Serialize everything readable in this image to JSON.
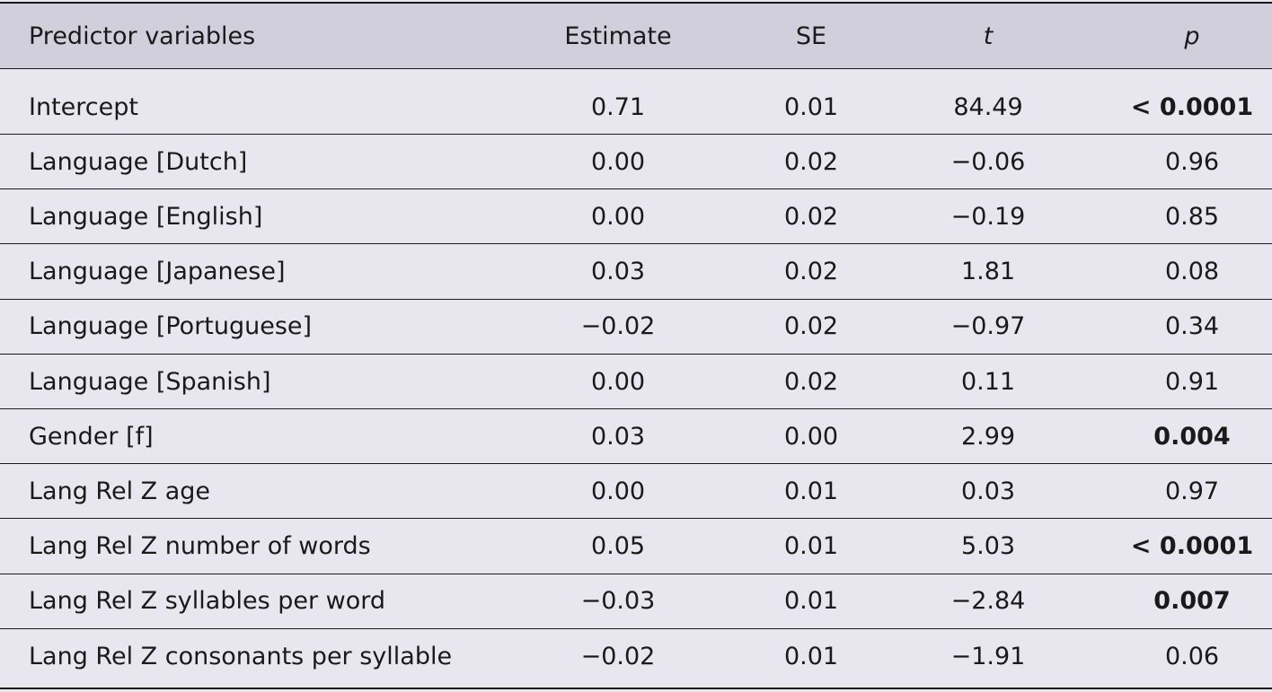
{
  "table": {
    "headers": [
      "Predictor variables",
      "Estimate",
      "SE",
      "t",
      "p"
    ],
    "rows": [
      {
        "predictor": "Intercept",
        "estimate": "0.71",
        "se": "0.01",
        "t": "84.49",
        "p": "< 0.0001",
        "p_bold": true
      },
      {
        "predictor": "Language [Dutch]",
        "estimate": "0.00",
        "se": "0.02",
        "t": "−0.06",
        "p": "0.96",
        "p_bold": false
      },
      {
        "predictor": "Language [English]",
        "estimate": "0.00",
        "se": "0.02",
        "t": "−0.19",
        "p": "0.85",
        "p_bold": false
      },
      {
        "predictor": "Language [Japanese]",
        "estimate": "0.03",
        "se": "0.02",
        "t": "1.81",
        "p": "0.08",
        "p_bold": false
      },
      {
        "predictor": "Language [Portuguese]",
        "estimate": "−0.02",
        "se": "0.02",
        "t": "−0.97",
        "p": "0.34",
        "p_bold": false
      },
      {
        "predictor": "Language [Spanish]",
        "estimate": "0.00",
        "se": "0.02",
        "t": "0.11",
        "p": "0.91",
        "p_bold": false
      },
      {
        "predictor": "Gender [f]",
        "estimate": "0.03",
        "se": "0.00",
        "t": "2.99",
        "p": "0.004",
        "p_bold": true
      },
      {
        "predictor": "Lang Rel Z age",
        "estimate": "0.00",
        "se": "0.01",
        "t": "0.03",
        "p": "0.97",
        "p_bold": false
      },
      {
        "predictor": "Lang Rel Z number of words",
        "estimate": "0.05",
        "se": "0.01",
        "t": "5.03",
        "p": "< 0.0001",
        "p_bold": true
      },
      {
        "predictor": "Lang Rel Z syllables per word",
        "estimate": "−0.03",
        "se": "0.01",
        "t": "−2.84",
        "p": "0.007",
        "p_bold": true
      },
      {
        "predictor": "Lang Rel Z consonants per syllable",
        "estimate": "−0.02",
        "se": "0.01",
        "t": "−1.91",
        "p": "0.06",
        "p_bold": false
      }
    ]
  },
  "colors": {
    "header_bg": "#d1cfdc",
    "body_bg": "#e8e7ef",
    "rule": "#1a1a1a"
  }
}
